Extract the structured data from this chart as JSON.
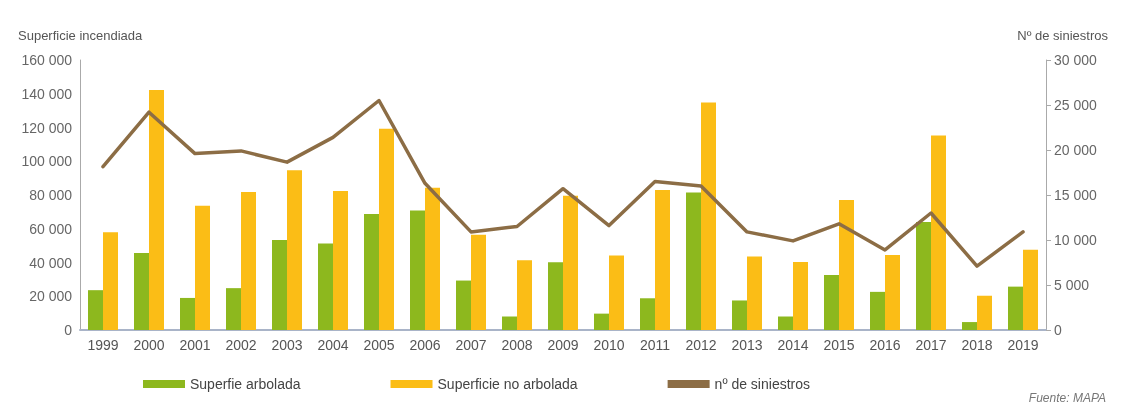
{
  "chart_data": {
    "type": "bar",
    "ylabel": "Superficie incendiada",
    "y2label": "Nº de siniestros",
    "categories": [
      "1999",
      "2000",
      "2001",
      "2002",
      "2003",
      "2004",
      "2005",
      "2006",
      "2007",
      "2008",
      "2009",
      "2010",
      "2011",
      "2012",
      "2013",
      "2014",
      "2015",
      "2016",
      "2017",
      "2018",
      "2019"
    ],
    "series": [
      {
        "name": "Superfie arbolada",
        "color": "#8db81e",
        "values": [
          23600,
          45700,
          19000,
          24800,
          53300,
          51300,
          68700,
          70800,
          29300,
          8000,
          40200,
          9700,
          18800,
          81500,
          17500,
          8000,
          32600,
          22600,
          64000,
          4700,
          25700
        ]
      },
      {
        "name": "Superficie no arbolada",
        "color": "#fbbd16",
        "values": [
          58000,
          142200,
          73600,
          81800,
          94600,
          82300,
          119200,
          84300,
          56400,
          41400,
          79600,
          44200,
          83000,
          134800,
          43500,
          40300,
          77000,
          44400,
          115300,
          20300,
          47600
        ]
      },
      {
        "name": "nº de siniestros",
        "type": "line",
        "axis": "y2",
        "color": "#8c6d45",
        "values": [
          18150,
          24200,
          19600,
          19900,
          18650,
          21400,
          25500,
          16300,
          10900,
          11500,
          15700,
          11600,
          16500,
          16000,
          10900,
          9900,
          11800,
          8900,
          13000,
          7100,
          10900
        ]
      }
    ],
    "ylim": [
      0,
      160000
    ],
    "yticks": [
      0,
      {
        "value": 20000,
        "label": "20 000"
      },
      {
        "value": 40000,
        "label": "40 000"
      },
      {
        "value": 60000,
        "label": "60 000"
      },
      {
        "value": 80000,
        "label": "80 000"
      },
      {
        "value": 100000,
        "label": "100 000"
      },
      {
        "value": 120000,
        "label": "120 000"
      },
      {
        "value": 140000,
        "label": "140 000"
      },
      {
        "value": 160000,
        "label": "160 000"
      }
    ],
    "y2lim": [
      0,
      30000
    ],
    "y2ticks": [
      0,
      {
        "value": 5000,
        "label": "5 000"
      },
      {
        "value": 10000,
        "label": "10 000"
      },
      {
        "value": 15000,
        "label": "15 000"
      },
      {
        "value": 20000,
        "label": "20 000"
      },
      {
        "value": 25000,
        "label": "25 000"
      },
      {
        "value": 30000,
        "label": "30 000"
      }
    ],
    "grid": false,
    "legend": "bottom",
    "marker": "none",
    "line_style": "solid",
    "annotations": [
      "Fuente: MAPA"
    ]
  }
}
